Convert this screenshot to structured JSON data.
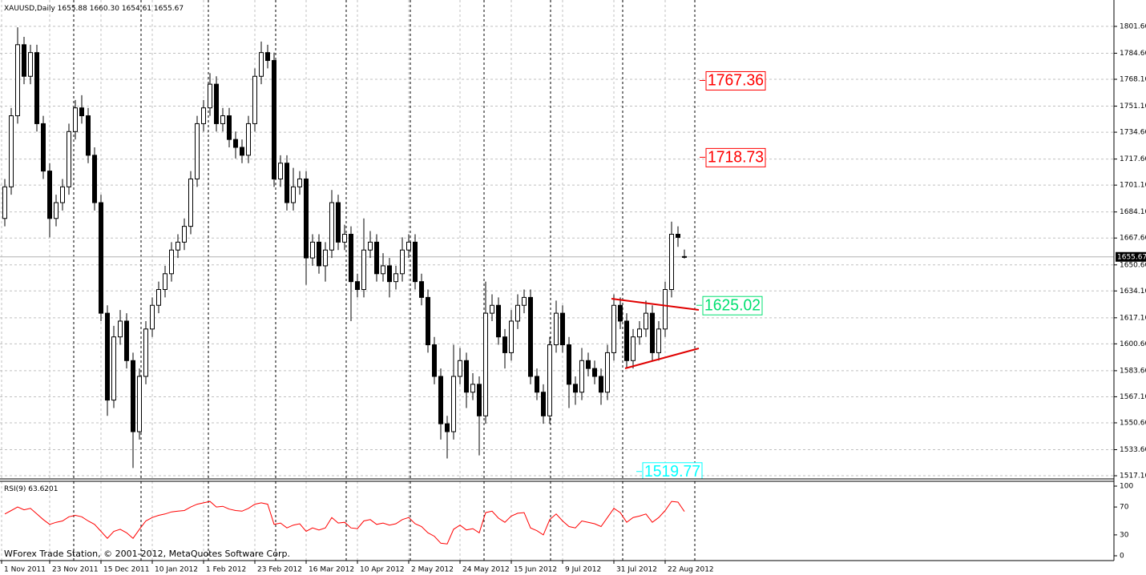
{
  "chart_data": [
    {
      "type": "candlestick",
      "title": "XAUUSD,Daily",
      "ohlc_label": "1655.88 1660.30 1654.61 1655.67",
      "open": [
        1680,
        1700,
        1745,
        1790,
        1770,
        1785,
        1740,
        1710,
        1680,
        1690,
        1700,
        1735,
        1750,
        1745,
        1720,
        1690,
        1620,
        1565,
        1605,
        1615,
        1590,
        1545,
        1580,
        1610,
        1625,
        1635,
        1645,
        1660,
        1665,
        1675,
        1705,
        1740,
        1750,
        1765,
        1740,
        1745,
        1730,
        1725,
        1720,
        1740,
        1770,
        1785,
        1780,
        1705,
        1715,
        1690,
        1700,
        1705,
        1655,
        1665,
        1650,
        1660,
        1690,
        1665,
        1670,
        1640,
        1635,
        1660,
        1665,
        1645,
        1650,
        1640,
        1645,
        1660,
        1665,
        1640,
        1630,
        1600,
        1580,
        1550,
        1545,
        1580,
        1590,
        1570,
        1575,
        1555,
        1620,
        1625,
        1605,
        1595,
        1615,
        1625,
        1630,
        1580,
        1570,
        1555,
        1600,
        1620,
        1600,
        1575,
        1570,
        1590,
        1585,
        1580,
        1570,
        1595,
        1625,
        1615,
        1590,
        1605,
        1610,
        1620,
        1595,
        1610,
        1635,
        1670,
        1655.88
      ],
      "high": [
        1705,
        1750,
        1801,
        1795,
        1790,
        1790,
        1745,
        1715,
        1695,
        1705,
        1740,
        1755,
        1758,
        1750,
        1725,
        1695,
        1625,
        1612,
        1622,
        1620,
        1595,
        1585,
        1615,
        1630,
        1640,
        1650,
        1665,
        1670,
        1680,
        1710,
        1745,
        1755,
        1772,
        1770,
        1750,
        1750,
        1735,
        1730,
        1745,
        1775,
        1792,
        1790,
        1785,
        1720,
        1720,
        1712,
        1710,
        1710,
        1670,
        1670,
        1665,
        1698,
        1695,
        1676,
        1675,
        1645,
        1680,
        1672,
        1670,
        1658,
        1655,
        1650,
        1668,
        1670,
        1670,
        1645,
        1635,
        1605,
        1585,
        1555,
        1600,
        1598,
        1595,
        1582,
        1580,
        1640,
        1632,
        1630,
        1610,
        1622,
        1632,
        1635,
        1635,
        1585,
        1575,
        1605,
        1628,
        1625,
        1605,
        1580,
        1598,
        1595,
        1590,
        1585,
        1600,
        1632,
        1630,
        1620,
        1610,
        1615,
        1628,
        1625,
        1615,
        1640,
        1678,
        1675,
        1660.3
      ],
      "low": [
        1675,
        1695,
        1740,
        1765,
        1765,
        1735,
        1705,
        1668,
        1675,
        1685,
        1695,
        1730,
        1740,
        1715,
        1685,
        1615,
        1555,
        1560,
        1600,
        1585,
        1522,
        1540,
        1575,
        1605,
        1620,
        1630,
        1640,
        1655,
        1660,
        1670,
        1700,
        1735,
        1745,
        1735,
        1735,
        1725,
        1718,
        1715,
        1715,
        1735,
        1765,
        1775,
        1700,
        1700,
        1685,
        1685,
        1695,
        1638,
        1650,
        1645,
        1640,
        1655,
        1660,
        1660,
        1615,
        1630,
        1630,
        1655,
        1640,
        1640,
        1630,
        1635,
        1640,
        1655,
        1635,
        1625,
        1595,
        1575,
        1540,
        1528,
        1540,
        1575,
        1560,
        1565,
        1530,
        1550,
        1615,
        1600,
        1585,
        1590,
        1610,
        1620,
        1575,
        1565,
        1550,
        1550,
        1595,
        1595,
        1560,
        1562,
        1565,
        1580,
        1575,
        1562,
        1565,
        1590,
        1610,
        1585,
        1585,
        1600,
        1605,
        1590,
        1590,
        1605,
        1630,
        1662,
        1654.61
      ],
      "close": [
        1700,
        1745,
        1790,
        1770,
        1785,
        1740,
        1710,
        1680,
        1690,
        1700,
        1735,
        1750,
        1745,
        1720,
        1690,
        1620,
        1565,
        1605,
        1615,
        1590,
        1545,
        1580,
        1610,
        1625,
        1635,
        1645,
        1660,
        1665,
        1675,
        1705,
        1740,
        1750,
        1765,
        1740,
        1745,
        1730,
        1725,
        1720,
        1740,
        1770,
        1785,
        1780,
        1705,
        1715,
        1690,
        1700,
        1705,
        1655,
        1665,
        1650,
        1660,
        1690,
        1665,
        1670,
        1640,
        1635,
        1660,
        1665,
        1645,
        1650,
        1640,
        1645,
        1660,
        1665,
        1640,
        1630,
        1600,
        1580,
        1550,
        1545,
        1580,
        1590,
        1570,
        1575,
        1555,
        1620,
        1625,
        1605,
        1595,
        1615,
        1625,
        1630,
        1580,
        1570,
        1555,
        1600,
        1620,
        1600,
        1575,
        1570,
        1590,
        1585,
        1580,
        1570,
        1595,
        1625,
        1615,
        1590,
        1605,
        1610,
        1620,
        1595,
        1610,
        1635,
        1670,
        1668,
        1655.67
      ],
      "ylim": [
        1515.1,
        1818.3
      ],
      "yticks": [
        {
          "value": 1801.6,
          "label": "1801.60"
        },
        {
          "value": 1784.6,
          "label": "1784.60"
        },
        {
          "value": 1768.1,
          "label": "1768.10"
        },
        {
          "value": 1751.1,
          "label": "1751.10"
        },
        {
          "value": 1734.6,
          "label": "1734.60"
        },
        {
          "value": 1717.6,
          "label": "1717.60"
        },
        {
          "value": 1701.1,
          "label": "1701.10"
        },
        {
          "value": 1684.1,
          "label": "1684.10"
        },
        {
          "value": 1667.6,
          "label": "1667.60"
        },
        {
          "value": 1650.6,
          "label": "1650.60"
        },
        {
          "value": 1634.1,
          "label": "1634.10"
        },
        {
          "value": 1617.1,
          "label": "1617.10"
        },
        {
          "value": 1600.6,
          "label": "1600.60"
        },
        {
          "value": 1583.6,
          "label": "1583.60"
        },
        {
          "value": 1567.1,
          "label": "1567.10"
        },
        {
          "value": 1550.6,
          "label": "1550.60"
        },
        {
          "value": 1533.6,
          "label": "1533.60"
        },
        {
          "value": 1517.1,
          "label": "1517.10"
        }
      ],
      "xlim": [
        -0.75,
        173
      ],
      "xticks": [
        {
          "value": -0.5,
          "label": "1 Nov 2011"
        },
        {
          "value": 7,
          "label": "23 Nov 2011"
        },
        {
          "value": 15,
          "label": "15 Dec 2011"
        },
        {
          "value": 23,
          "label": "10 Jan 2012"
        },
        {
          "value": 31,
          "label": "1 Feb 2012"
        },
        {
          "value": 39,
          "label": "23 Feb 2012"
        },
        {
          "value": 47,
          "label": "16 Mar 2012"
        },
        {
          "value": 55,
          "label": "10 Apr 2012"
        },
        {
          "value": 63,
          "label": "2 May 2012"
        },
        {
          "value": 71,
          "label": "24 May 2012"
        },
        {
          "value": 79,
          "label": "15 Jun 2012"
        },
        {
          "value": 87,
          "label": "9 Jul 2012"
        },
        {
          "value": 95,
          "label": "31 Jul 2012"
        },
        {
          "value": 103,
          "label": "22 Aug 2012"
        }
      ],
      "grid": true,
      "last_price": 1655.67,
      "annotations": [
        {
          "value": 1767.36,
          "color": "#ff0000"
        },
        {
          "value": 1718.73,
          "color": "#ff0000"
        },
        {
          "value": 1625.02,
          "color": "#00e070"
        },
        {
          "value": 1519.77,
          "color": "#00ffff"
        }
      ]
    },
    {
      "type": "line",
      "title": "RSI(9)",
      "color": "#ff0000",
      "values": [
        60,
        65,
        70,
        66,
        68,
        60,
        52,
        45,
        48,
        50,
        56,
        58,
        56,
        50,
        45,
        35,
        25,
        35,
        38,
        33,
        25,
        38,
        50,
        55,
        58,
        60,
        63,
        64,
        65,
        70,
        74,
        76,
        78,
        70,
        71,
        67,
        65,
        64,
        68,
        74,
        76,
        74,
        45,
        47,
        40,
        44,
        46,
        35,
        40,
        37,
        40,
        55,
        47,
        48,
        40,
        39,
        50,
        52,
        45,
        47,
        44,
        46,
        52,
        55,
        46,
        42,
        33,
        28,
        18,
        17,
        38,
        44,
        37,
        39,
        33,
        62,
        64,
        54,
        48,
        57,
        61,
        62,
        40,
        36,
        30,
        52,
        60,
        50,
        42,
        40,
        50,
        48,
        46,
        42,
        55,
        68,
        62,
        48,
        55,
        57,
        60,
        48,
        55,
        65,
        78,
        77,
        63.6201
      ],
      "ylim": [
        -6.9,
        106.9
      ],
      "yticks": [
        0,
        30,
        70,
        100
      ]
    }
  ],
  "footer": "WForex Trade Station, © 2001-2012, MetaQuotes Software Corp."
}
